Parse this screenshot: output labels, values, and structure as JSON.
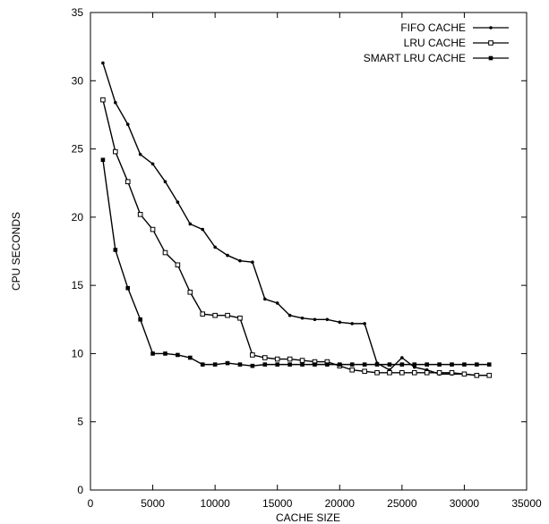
{
  "chart_data": {
    "type": "line",
    "title": "",
    "xlabel": "CACHE SIZE",
    "ylabel": "CPU SECONDS",
    "xlim": [
      0,
      35000
    ],
    "ylim": [
      0,
      35
    ],
    "xticks": [
      0,
      5000,
      10000,
      15000,
      20000,
      25000,
      30000,
      35000
    ],
    "yticks": [
      0,
      5,
      10,
      15,
      20,
      25,
      30,
      35
    ],
    "grid": false,
    "legend_position": "top-right",
    "x": [
      1000,
      2000,
      3000,
      4000,
      5000,
      6000,
      7000,
      8000,
      9000,
      10000,
      11000,
      12000,
      13000,
      14000,
      15000,
      16000,
      17000,
      18000,
      19000,
      20000,
      21000,
      22000,
      23000,
      24000,
      25000,
      26000,
      27000,
      28000,
      29000,
      30000,
      31000,
      32000
    ],
    "series": [
      {
        "name": "FIFO CACHE",
        "marker": "circle-dot",
        "values": [
          31.3,
          28.4,
          26.8,
          24.6,
          23.9,
          22.6,
          21.1,
          19.5,
          19.1,
          17.8,
          17.2,
          16.8,
          16.7,
          14.0,
          13.7,
          12.8,
          12.6,
          12.5,
          12.5,
          12.3,
          12.2,
          12.2,
          9.3,
          8.8,
          9.7,
          9.0,
          8.8,
          8.5,
          8.5,
          8.5,
          8.4,
          8.4
        ]
      },
      {
        "name": "LRU CACHE",
        "marker": "open-square",
        "values": [
          28.6,
          24.8,
          22.6,
          20.2,
          19.1,
          17.4,
          16.5,
          14.5,
          12.9,
          12.8,
          12.8,
          12.6,
          9.9,
          9.7,
          9.6,
          9.6,
          9.5,
          9.4,
          9.4,
          9.1,
          8.8,
          8.7,
          8.6,
          8.6,
          8.6,
          8.6,
          8.6,
          8.6,
          8.6,
          8.5,
          8.4,
          8.4
        ]
      },
      {
        "name": "SMART LRU CACHE",
        "marker": "filled-square",
        "values": [
          24.2,
          17.6,
          14.8,
          12.5,
          10.0,
          10.0,
          9.9,
          9.7,
          9.2,
          9.2,
          9.3,
          9.2,
          9.1,
          9.2,
          9.2,
          9.2,
          9.2,
          9.2,
          9.2,
          9.2,
          9.2,
          9.2,
          9.2,
          9.2,
          9.2,
          9.2,
          9.2,
          9.2,
          9.2,
          9.2,
          9.2,
          9.2
        ]
      }
    ]
  }
}
